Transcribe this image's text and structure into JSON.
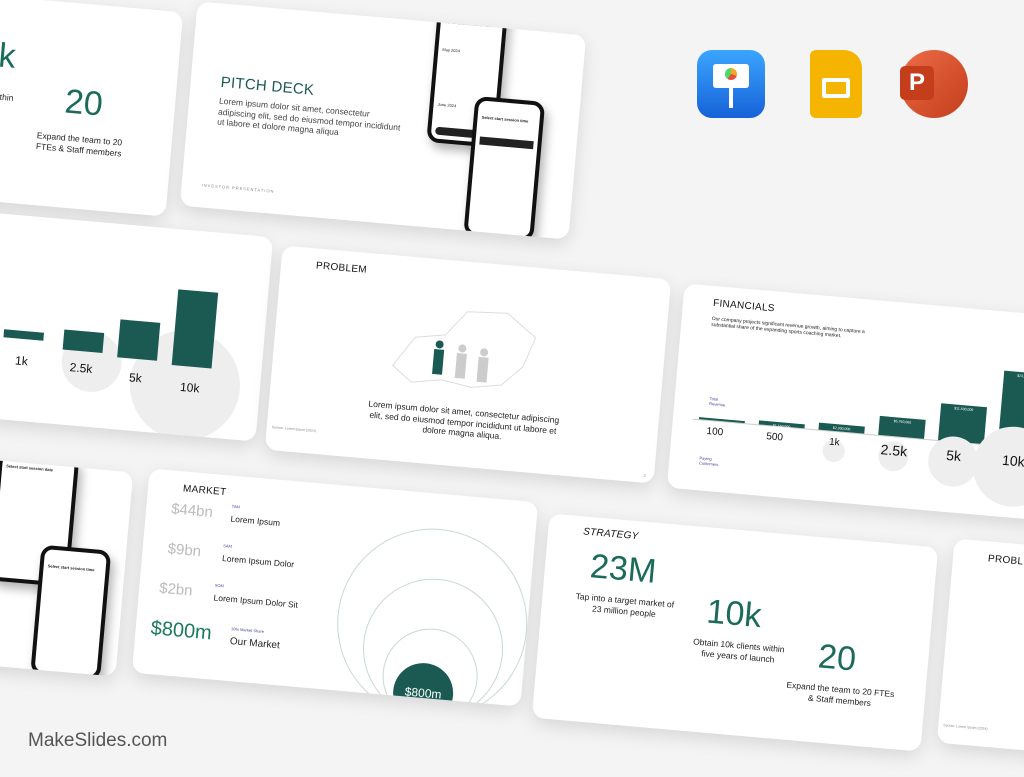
{
  "watermark": "MakeSlides.com",
  "apps": [
    {
      "name": "Keynote",
      "color": "#1e8cf0"
    },
    {
      "name": "Google Slides",
      "color": "#f4b400"
    },
    {
      "name": "PowerPoint",
      "color": "#d04423"
    }
  ],
  "accent": "#1a5a52",
  "strategy_partial": {
    "value_a": "k",
    "text_a": "s within\nnch",
    "value": "20",
    "text": "Expand the team to 20 FTEs & Staff members"
  },
  "pitch": {
    "title": "PITCH DECK",
    "body": "Lorem ipsum dolor sit amet, consectetur adipiscing elit, sed do eiusmod tempor incididunt ut labore et dolore magna aliqua",
    "footer": "INVESTOR PRESENTATION",
    "phone_title": "Select start session date",
    "month1": "May 2024",
    "month2": "June 2024",
    "phone2_title": "Select start session time",
    "btn": "Next"
  },
  "problem": {
    "title": "PROBLEM",
    "body": "Lorem ipsum dolor sit amet, consectetur adipiscing elit, sed do eiusmod tempor incididunt ut labore et dolore magna aliqua.",
    "source": "Source: Lorem ipsum (2024)",
    "page": "2"
  },
  "financials": {
    "title": "FINANCIALS",
    "body": "Our company projects significant revenue growth, aiming to capture a substantial share of the expanding sports coaching market.",
    "revenue_label": "Total Revenue",
    "customers_label": "Paying Customers",
    "chart_data": {
      "type": "bar",
      "categories": [
        "100",
        "500",
        "1k",
        "2.5k",
        "5k",
        "10k"
      ],
      "values": [
        100000,
        1150000,
        2300000,
        5750000,
        11500000,
        23000000
      ],
      "labels": [
        "",
        "$1,150,000",
        "$2,300,000",
        "$5,750,000",
        "$11,500,000",
        "$23,000,000"
      ]
    }
  },
  "market": {
    "title": "MARKET",
    "rows": [
      {
        "value": "$44bn",
        "tag": "TAM",
        "label": "Lorem Ipsum"
      },
      {
        "value": "$9bn",
        "tag": "SAM",
        "label": "Lorem Ipsum Dolor"
      },
      {
        "value": "$2bn",
        "tag": "SOM",
        "label": "Lorem Ipsum Dolor Sit"
      },
      {
        "value": "$800m",
        "tag": "10% Market Share",
        "label": "Our Market"
      }
    ],
    "circle": "$800m"
  },
  "strategy": {
    "title": "STRATEGY",
    "items": [
      {
        "value": "23M",
        "text": "Tap into a target market of 23 million people"
      },
      {
        "value": "10k",
        "text": "Obtain 10k clients within five years of launch"
      },
      {
        "value": "20",
        "text": "Expand the team to 20 FTEs & Staff members"
      }
    ]
  },
  "problem_partial": {
    "title": "PROBLEM",
    "source": "Source: Lorem ipsum (2024)"
  }
}
